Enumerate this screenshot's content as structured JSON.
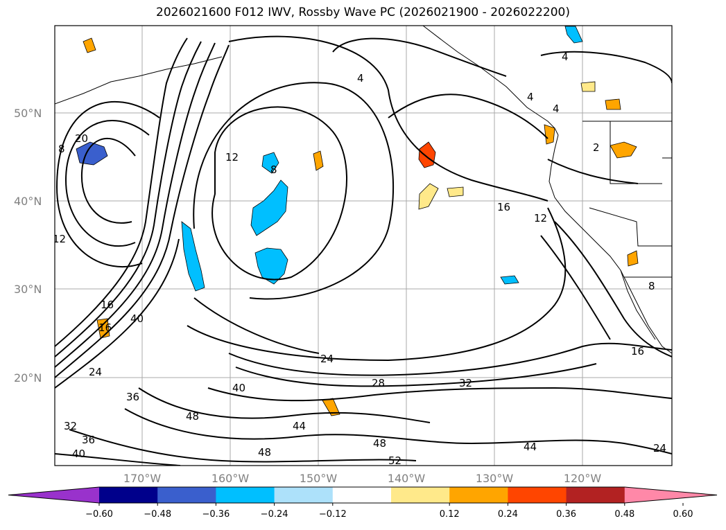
{
  "title": "2026021600 F012 IWV, Rossby Wave PC (2026021900 - 2026022200)",
  "lat_labels": [
    "50°N",
    "40°N",
    "30°N",
    "20°N"
  ],
  "lon_labels": [
    "170°W",
    "160°W",
    "150°W",
    "140°W",
    "130°W",
    "120°W"
  ],
  "colorbar": {
    "colors": [
      "#9932CC",
      "#00008B",
      "#3A5FCD",
      "#00BFFF",
      "#ADE1FA",
      "#FFFFFF",
      "#FFE98A",
      "#FFA500",
      "#FF4500",
      "#B22222",
      "#FF88A8"
    ],
    "ticks": [
      "−0.60",
      "−0.48",
      "−0.36",
      "−0.24",
      "−0.12",
      "0.12",
      "0.24",
      "0.36",
      "0.48",
      "0.60"
    ]
  },
  "contour_labels": [
    "8",
    "20",
    "12",
    "8",
    "4",
    "4",
    "4",
    "4",
    "2",
    "16",
    "12",
    "12",
    "16",
    "40",
    "16",
    "16",
    "24",
    "28",
    "32",
    "24",
    "36",
    "32",
    "36",
    "40",
    "48",
    "44",
    "48",
    "48",
    "52",
    "44",
    "24",
    "40",
    "8"
  ]
}
